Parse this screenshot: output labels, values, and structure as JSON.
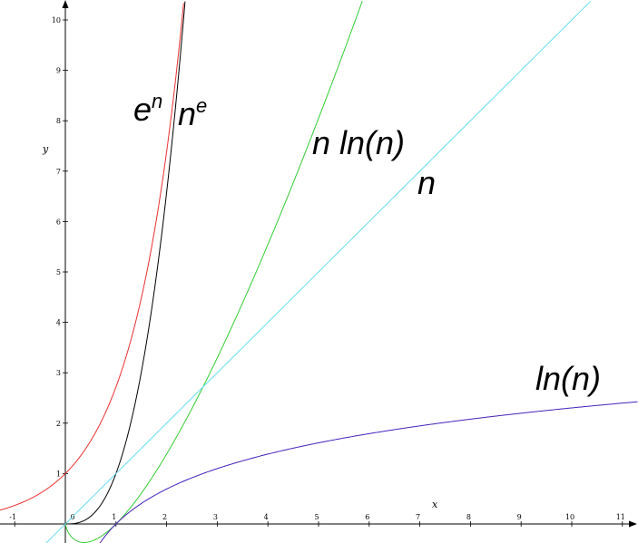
{
  "chart_data": {
    "type": "line",
    "xlabel": "x",
    "ylabel": "y",
    "xlim": [
      -1.3,
      11.3
    ],
    "ylim": [
      -0.4,
      10.4
    ],
    "xticks": [
      -1,
      0,
      1,
      2,
      3,
      4,
      5,
      6,
      7,
      8,
      9,
      10,
      11
    ],
    "yticks": [
      1,
      2,
      3,
      4,
      5,
      6,
      7,
      8,
      9,
      10
    ],
    "grid": false,
    "series": [
      {
        "label_base": "e",
        "label_sup": "n",
        "expr": "exp",
        "color": "#e8312f",
        "points": [
          [
            -1.3,
            0.27
          ],
          [
            -1,
            0.37
          ],
          [
            -0.5,
            0.61
          ],
          [
            0,
            1.0
          ],
          [
            0.5,
            1.65
          ],
          [
            1,
            2.72
          ],
          [
            1.5,
            4.48
          ],
          [
            2,
            7.39
          ],
          [
            2.2,
            9.03
          ],
          [
            2.34,
            10.38
          ]
        ]
      },
      {
        "label_base": "n",
        "label_sup": "e",
        "expr": "pow_e",
        "color": "#000000",
        "points": [
          [
            0,
            0
          ],
          [
            0.5,
            0.15
          ],
          [
            1,
            1.0
          ],
          [
            1.5,
            3.01
          ],
          [
            2,
            6.58
          ],
          [
            2.2,
            8.52
          ],
          [
            2.35,
            10.21
          ]
        ]
      },
      {
        "label": "n ln(n)",
        "expr": "xlnx",
        "color": "#33cc33",
        "points": [
          [
            0.05,
            -0.15
          ],
          [
            0.37,
            -0.37
          ],
          [
            1,
            0
          ],
          [
            2,
            1.39
          ],
          [
            3,
            3.3
          ],
          [
            4,
            5.55
          ],
          [
            5,
            8.05
          ],
          [
            5.9,
            10.47
          ]
        ]
      },
      {
        "label": "n",
        "expr": "identity",
        "color": "#66ddee",
        "points": [
          [
            -0.4,
            -0.4
          ],
          [
            0,
            0
          ],
          [
            5,
            5
          ],
          [
            10.4,
            10.4
          ]
        ]
      },
      {
        "label": "ln(n)",
        "expr": "ln",
        "color": "#4422bb",
        "points": [
          [
            0.67,
            -0.4
          ],
          [
            1,
            0
          ],
          [
            2,
            0.69
          ],
          [
            4,
            1.39
          ],
          [
            6,
            1.79
          ],
          [
            8,
            2.08
          ],
          [
            10,
            2.3
          ],
          [
            11.3,
            2.42
          ]
        ]
      }
    ]
  }
}
